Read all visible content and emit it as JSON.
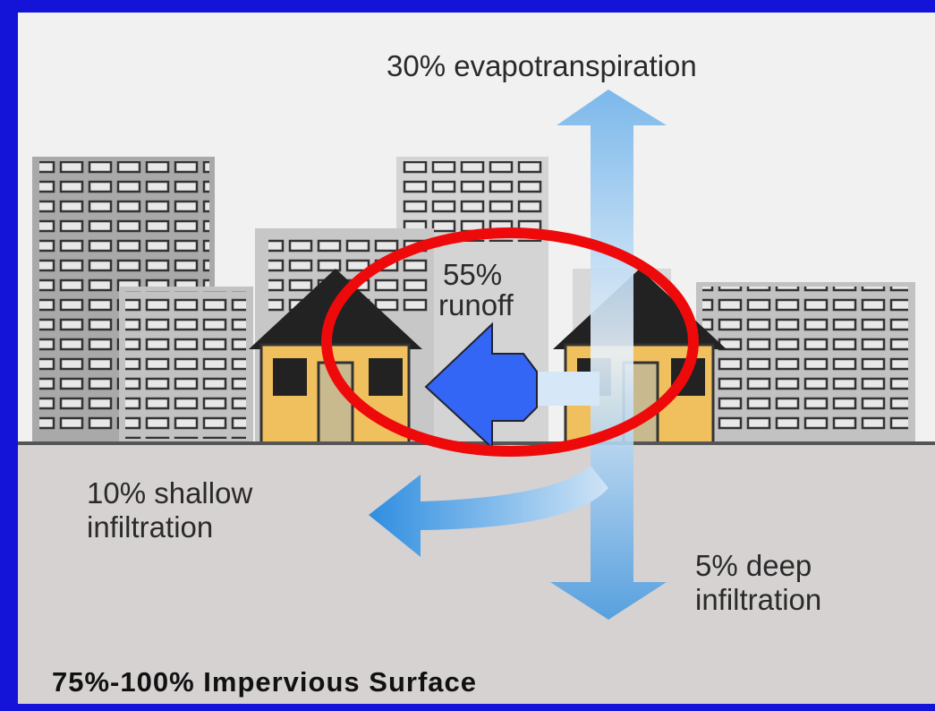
{
  "evapotranspiration": {
    "lines": [
      "30% evapotranspiration"
    ]
  },
  "runoff": {
    "lines": [
      "55%",
      "runoff"
    ]
  },
  "shallow_infiltration": {
    "lines": [
      "10% shallow",
      "infiltration"
    ]
  },
  "deep_infiltration": {
    "lines": [
      "5% deep",
      "infiltration"
    ]
  },
  "surface_label": "75%-100% Impervious Surface"
}
